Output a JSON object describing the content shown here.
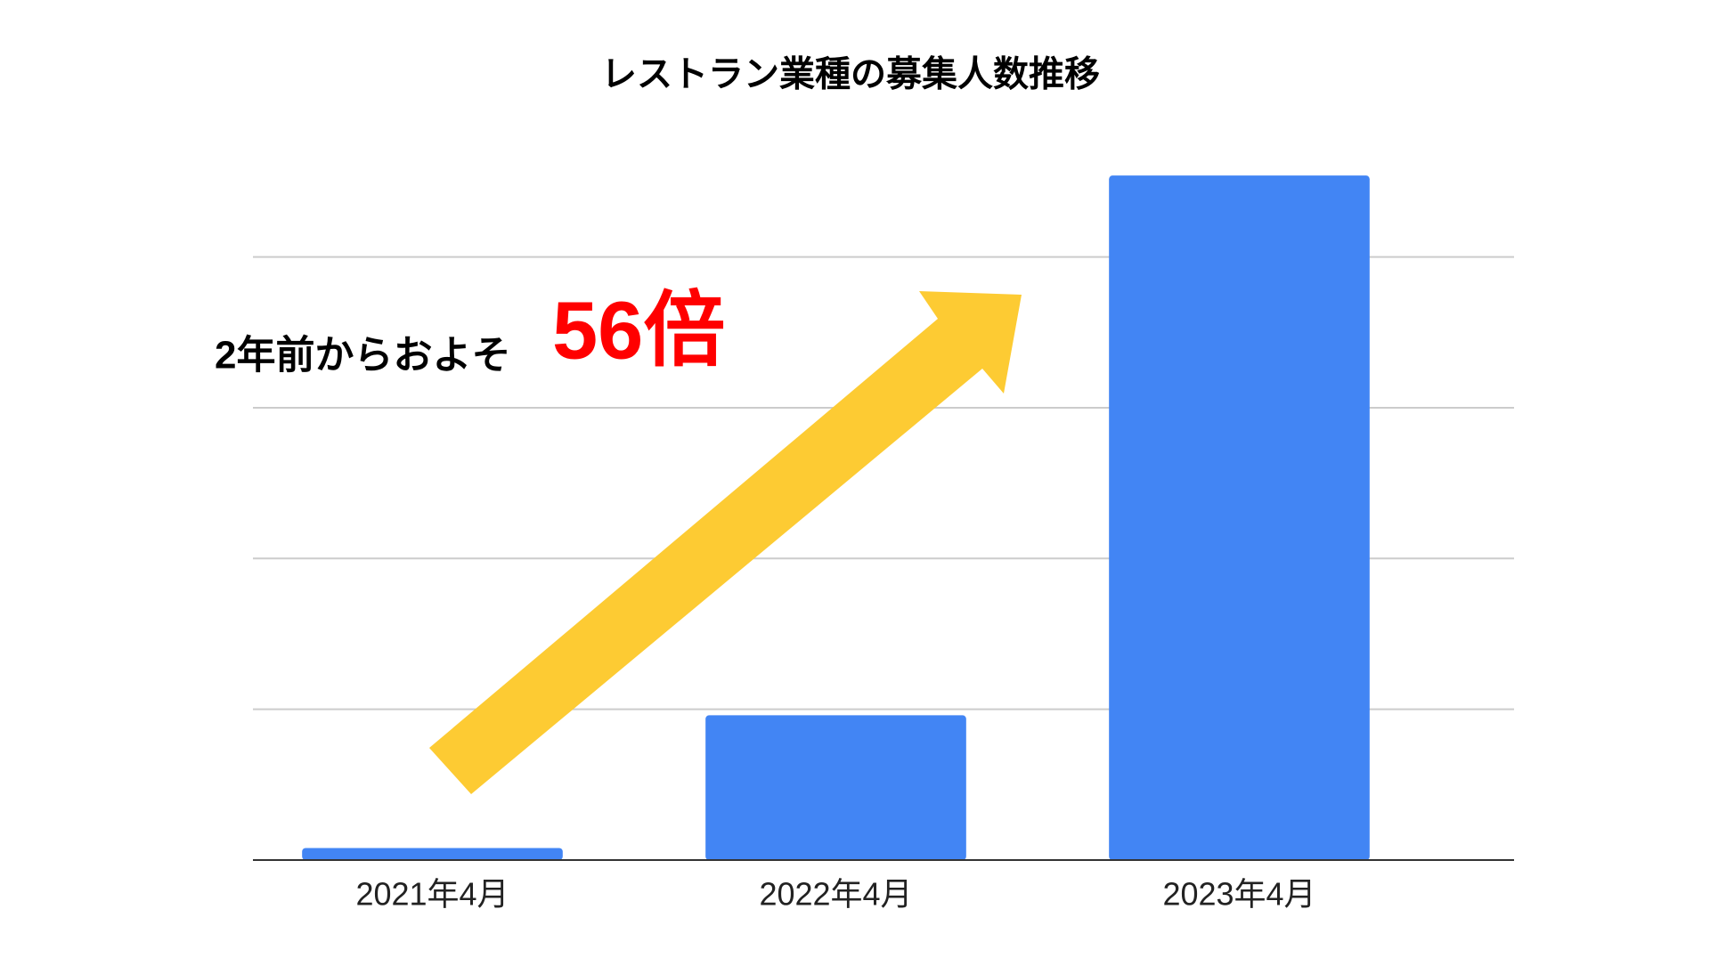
{
  "chart_data": {
    "type": "bar",
    "title": "レストラン業種の募集人数推移",
    "categories": [
      "2021年4月",
      "2022年4月",
      "2023年4月"
    ],
    "values": [
      0.08,
      0.96,
      4.54
    ],
    "color": "#4285f4",
    "ylim": [
      0,
      4.6
    ],
    "yticks": [
      0,
      1,
      2,
      3,
      4
    ],
    "grid": true,
    "annotation": "2年前からおよそ",
    "annotation_highlight": "56倍"
  }
}
